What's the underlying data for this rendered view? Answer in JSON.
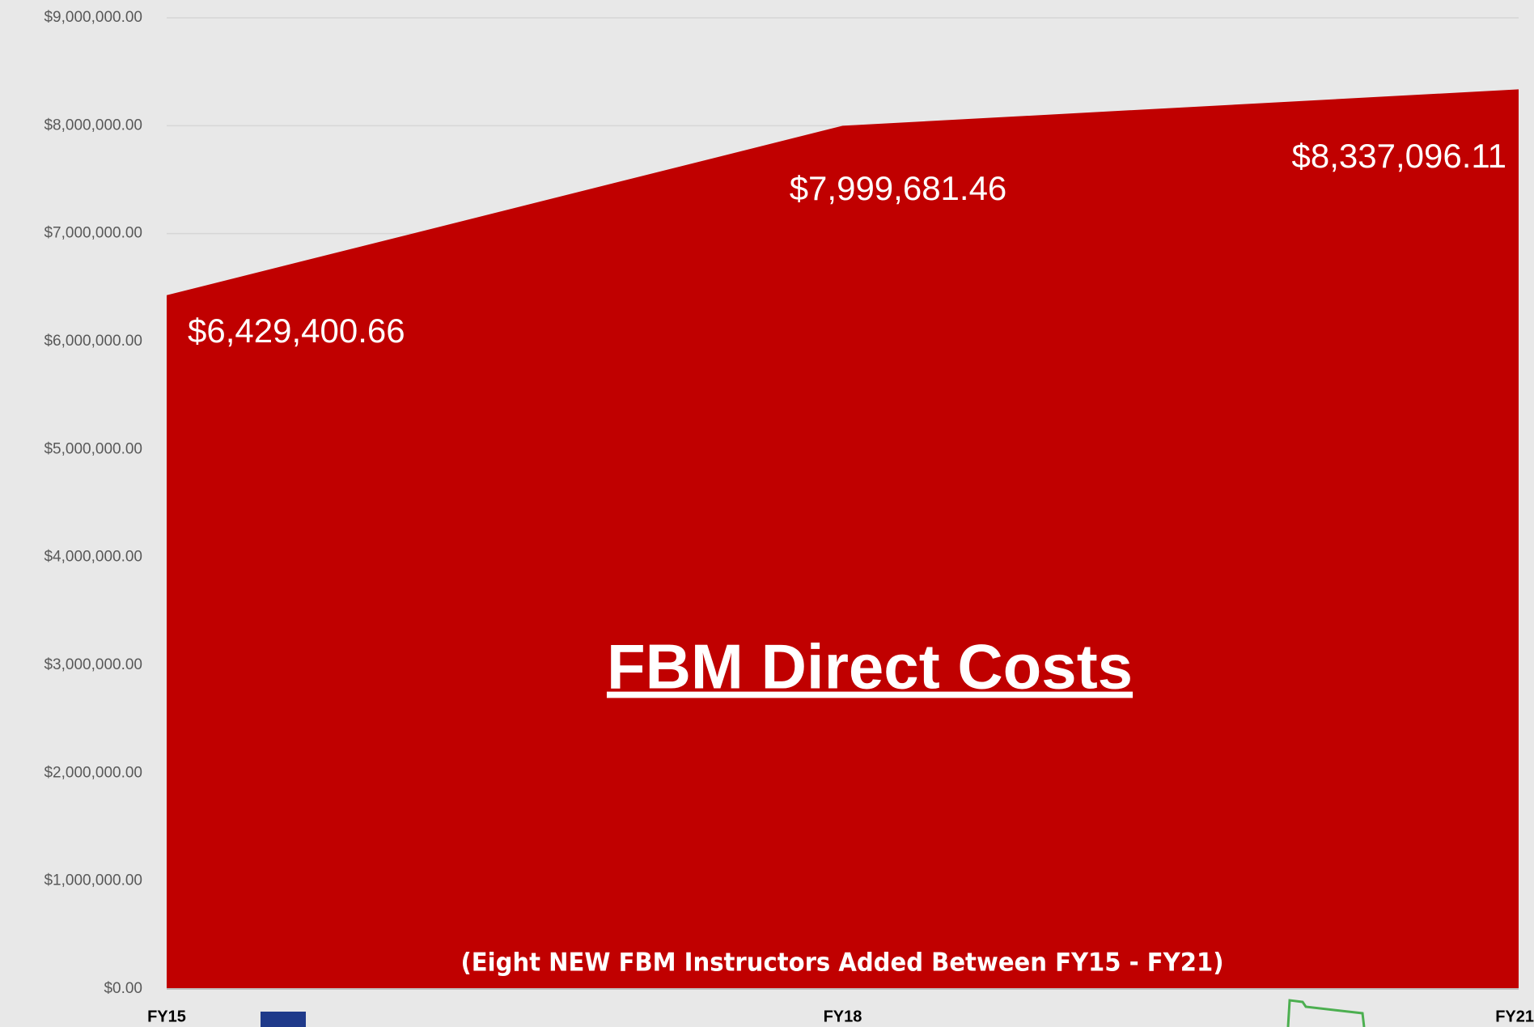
{
  "chart_data": {
    "type": "area",
    "title": "FBM Direct Costs",
    "subtitle": "(Eight NEW FBM Instructors Added Between FY15 - FY21)",
    "categories": [
      "FY15",
      "FY18",
      "FY21"
    ],
    "values": [
      6429400.66,
      7999681.46,
      8337096.11
    ],
    "value_labels": [
      "$6,429,400.66",
      "$7,999,681.46",
      "$8,337,096.11"
    ],
    "color": "#c00000",
    "ylim": [
      0,
      9000000
    ],
    "yticks": [
      {
        "value": 0,
        "label": "$0.00"
      },
      {
        "value": 1000000,
        "label": "$1,000,000.00"
      },
      {
        "value": 2000000,
        "label": "$2,000,000.00"
      },
      {
        "value": 3000000,
        "label": "$3,000,000.00"
      },
      {
        "value": 4000000,
        "label": "$4,000,000.00"
      },
      {
        "value": 5000000,
        "label": "$5,000,000.00"
      },
      {
        "value": 6000000,
        "label": "$6,000,000.00"
      },
      {
        "value": 7000000,
        "label": "$7,000,000.00"
      },
      {
        "value": 8000000,
        "label": "$8,000,000.00"
      },
      {
        "value": 9000000,
        "label": "$9,000,000.00"
      }
    ],
    "grid": true
  }
}
